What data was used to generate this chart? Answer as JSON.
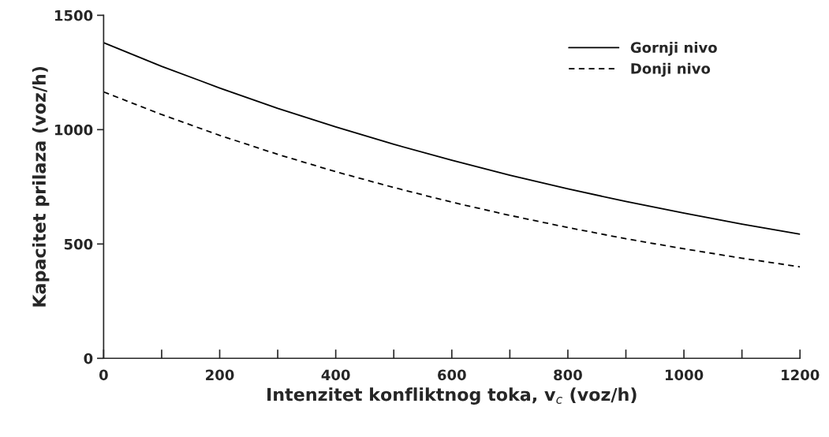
{
  "chart_data": {
    "type": "line",
    "xlabel": "Intenzitet konfliktnog toka, v$_{c}$ (voz/h)",
    "ylabel": "Kapacitet prilaza (voz/h)",
    "x": [
      0,
      100,
      200,
      300,
      400,
      500,
      600,
      700,
      800,
      900,
      1000,
      1100,
      1200
    ],
    "series": [
      {
        "name": "Gornji nivo",
        "color": "#000000",
        "line_style": "solid",
        "values": [
          1380,
          1277,
          1182,
          1093,
          1012,
          936,
          866,
          801,
          741,
          686,
          635,
          587,
          543
        ]
      },
      {
        "name": "Donji nivo",
        "color": "#000000",
        "line_style": "dashed",
        "values": [
          1165,
          1066,
          975,
          892,
          816,
          747,
          683,
          625,
          572,
          523,
          479,
          438,
          400
        ]
      }
    ],
    "xlim": [
      0,
      1200
    ],
    "ylim": [
      0,
      1500
    ],
    "xticks": [
      0,
      {
        "value": 100,
        "label": null
      },
      200,
      {
        "value": 300,
        "label": null
      },
      400,
      {
        "value": 500,
        "label": null
      },
      600,
      {
        "value": 700,
        "label": null
      },
      800,
      {
        "value": 900,
        "label": null
      },
      1000,
      {
        "value": 1100,
        "label": null
      },
      1200
    ],
    "yticks": [
      0,
      500,
      1000,
      1500
    ],
    "grid": false,
    "legend": "top right",
    "marker": "none"
  }
}
